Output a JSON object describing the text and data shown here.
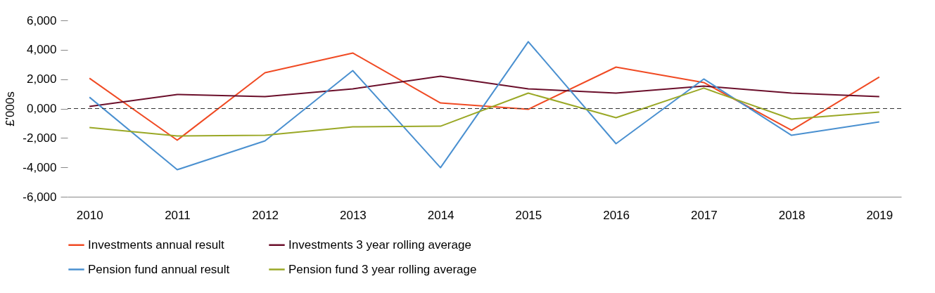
{
  "chart_data": {
    "type": "line",
    "ylabel": "£'000s",
    "categories": [
      "2010",
      "2011",
      "2012",
      "2013",
      "2014",
      "2015",
      "2016",
      "2017",
      "2018",
      "2019"
    ],
    "series": [
      {
        "name": "Investments annual result",
        "color": "#f04a23",
        "values": [
          2060,
          -2150,
          2440,
          3780,
          380,
          -50,
          2820,
          1770,
          -1480,
          2150
        ]
      },
      {
        "name": "Investments 3 year rolling average",
        "color": "#6b0f2b",
        "values": [
          140,
          960,
          810,
          1340,
          2200,
          1340,
          1050,
          1530,
          1050,
          810
        ]
      },
      {
        "name": "Pension fund annual result",
        "color": "#4a90d0",
        "values": [
          770,
          -4160,
          -2200,
          2580,
          -4020,
          4550,
          -2390,
          2010,
          -1820,
          -910
        ]
      },
      {
        "name": "Pension fund 3 year rolling average",
        "color": "#9aa826",
        "values": [
          -1290,
          -1870,
          -1820,
          -1240,
          -1200,
          1050,
          -620,
          1390,
          -720,
          -240
        ]
      }
    ],
    "ylim": [
      -6000,
      6000
    ],
    "yticks": [
      {
        "value": -6000,
        "label": "-6,000"
      },
      {
        "value": -4000,
        "label": "-4,000"
      },
      {
        "value": -2000,
        "label": "-2,000"
      },
      {
        "value": 0,
        "label": "0,000"
      },
      {
        "value": 2000,
        "label": "2,000"
      },
      {
        "value": 4000,
        "label": "4,000"
      },
      {
        "value": 6000,
        "label": "6,000"
      }
    ],
    "ref_lines": [
      {
        "axis": "y",
        "value": 0,
        "color": "#333333",
        "line_style": "dashed"
      }
    ],
    "grid": false,
    "legend": "bottom",
    "line_style": "solid",
    "marker": "none"
  }
}
